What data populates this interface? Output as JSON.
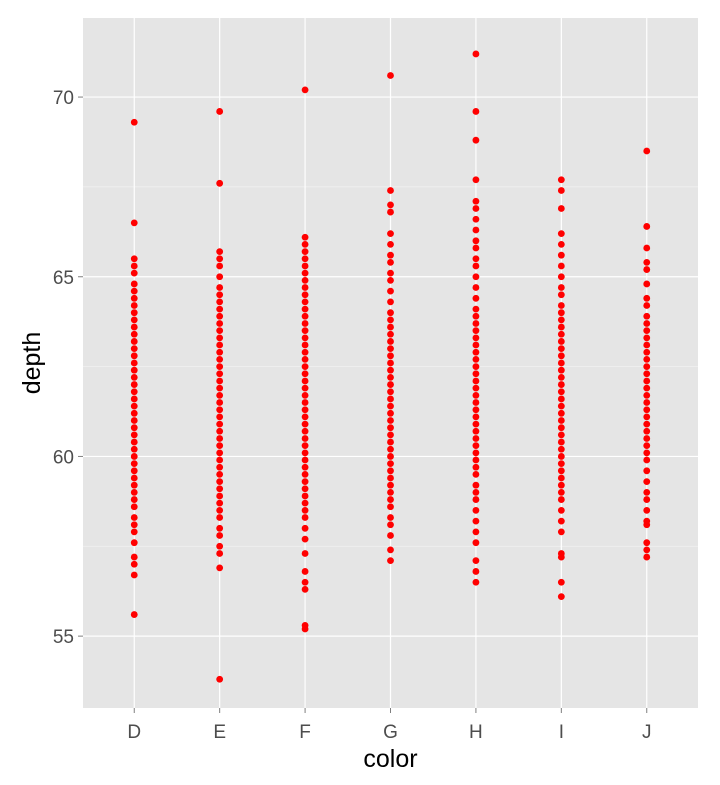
{
  "chart_data": {
    "type": "scatter",
    "title": "",
    "xlabel": "color",
    "ylabel": "depth",
    "categories": [
      "D",
      "E",
      "F",
      "G",
      "H",
      "I",
      "J"
    ],
    "ylim": [
      53,
      72.2
    ],
    "yticks": [
      55,
      60,
      65,
      70
    ],
    "grid": true,
    "legend": "none",
    "point_color": "#ff0000",
    "panel_color": "#e5e5e5",
    "grid_color": "#ffffff",
    "series": [
      {
        "category": "D",
        "values": [
          69.3,
          66.5,
          65.5,
          65.3,
          65.1,
          64.8,
          64.6,
          64.4,
          64.2,
          64.0,
          63.8,
          63.6,
          63.4,
          63.2,
          63.0,
          62.8,
          62.6,
          62.4,
          62.2,
          62.0,
          61.8,
          61.6,
          61.4,
          61.2,
          61.0,
          60.8,
          60.6,
          60.4,
          60.2,
          60.0,
          59.8,
          59.6,
          59.4,
          59.2,
          59.0,
          58.8,
          58.6,
          58.3,
          58.1,
          57.9,
          57.6,
          57.2,
          57.0,
          56.7,
          55.6
        ]
      },
      {
        "category": "E",
        "values": [
          69.6,
          67.6,
          65.7,
          65.5,
          65.3,
          65.0,
          64.7,
          64.5,
          64.3,
          64.1,
          63.9,
          63.7,
          63.5,
          63.3,
          63.1,
          62.9,
          62.7,
          62.5,
          62.3,
          62.1,
          61.9,
          61.7,
          61.5,
          61.3,
          61.1,
          60.9,
          60.7,
          60.5,
          60.3,
          60.1,
          59.9,
          59.7,
          59.5,
          59.3,
          59.1,
          58.9,
          58.7,
          58.5,
          58.3,
          58.0,
          57.8,
          57.5,
          57.3,
          56.9,
          53.8
        ]
      },
      {
        "category": "F",
        "values": [
          70.2,
          66.1,
          65.9,
          65.7,
          65.5,
          65.3,
          65.1,
          64.9,
          64.7,
          64.5,
          64.3,
          64.1,
          63.9,
          63.7,
          63.5,
          63.3,
          63.1,
          62.9,
          62.7,
          62.5,
          62.3,
          62.1,
          61.9,
          61.7,
          61.5,
          61.3,
          61.1,
          60.9,
          60.7,
          60.5,
          60.3,
          60.1,
          59.9,
          59.7,
          59.5,
          59.3,
          59.1,
          58.9,
          58.7,
          58.5,
          58.3,
          58.0,
          57.7,
          57.3,
          56.8,
          56.5,
          56.3,
          55.3,
          55.2
        ]
      },
      {
        "category": "G",
        "values": [
          70.6,
          67.4,
          67.0,
          66.8,
          66.2,
          65.9,
          65.6,
          65.4,
          65.1,
          64.9,
          64.6,
          64.3,
          64.0,
          63.8,
          63.6,
          63.4,
          63.2,
          63.0,
          62.8,
          62.6,
          62.4,
          62.2,
          62.0,
          61.8,
          61.6,
          61.4,
          61.2,
          61.0,
          60.8,
          60.6,
          60.4,
          60.2,
          60.0,
          59.8,
          59.6,
          59.4,
          59.2,
          59.0,
          58.8,
          58.6,
          58.3,
          58.1,
          57.8,
          57.4,
          57.1
        ]
      },
      {
        "category": "H",
        "values": [
          71.2,
          69.6,
          68.8,
          67.7,
          67.1,
          66.9,
          66.6,
          66.3,
          66.0,
          65.8,
          65.5,
          65.3,
          65.0,
          64.7,
          64.4,
          64.1,
          63.9,
          63.7,
          63.5,
          63.3,
          63.1,
          62.9,
          62.7,
          62.5,
          62.3,
          62.1,
          61.9,
          61.7,
          61.5,
          61.3,
          61.1,
          60.9,
          60.7,
          60.5,
          60.3,
          60.1,
          59.9,
          59.7,
          59.5,
          59.2,
          59.0,
          58.8,
          58.5,
          58.2,
          57.9,
          57.6,
          57.1,
          56.8,
          56.5
        ]
      },
      {
        "category": "I",
        "values": [
          67.7,
          67.4,
          66.9,
          66.2,
          65.9,
          65.6,
          65.3,
          65.0,
          64.7,
          64.5,
          64.2,
          64.0,
          63.8,
          63.6,
          63.4,
          63.2,
          63.0,
          62.8,
          62.6,
          62.4,
          62.2,
          62.0,
          61.8,
          61.6,
          61.4,
          61.2,
          61.0,
          60.8,
          60.6,
          60.4,
          60.2,
          60.0,
          59.8,
          59.6,
          59.4,
          59.2,
          59.0,
          58.8,
          58.5,
          58.2,
          57.9,
          57.3,
          57.2,
          56.5,
          56.1
        ]
      },
      {
        "category": "J",
        "values": [
          68.5,
          66.4,
          65.8,
          65.4,
          65.2,
          64.8,
          64.4,
          64.2,
          63.9,
          63.7,
          63.5,
          63.3,
          63.1,
          62.9,
          62.7,
          62.5,
          62.3,
          62.1,
          61.9,
          61.7,
          61.5,
          61.3,
          61.1,
          60.9,
          60.7,
          60.5,
          60.3,
          60.1,
          59.9,
          59.6,
          59.3,
          59.0,
          58.8,
          58.5,
          58.2,
          58.1,
          57.6,
          57.4,
          57.2
        ]
      }
    ]
  }
}
